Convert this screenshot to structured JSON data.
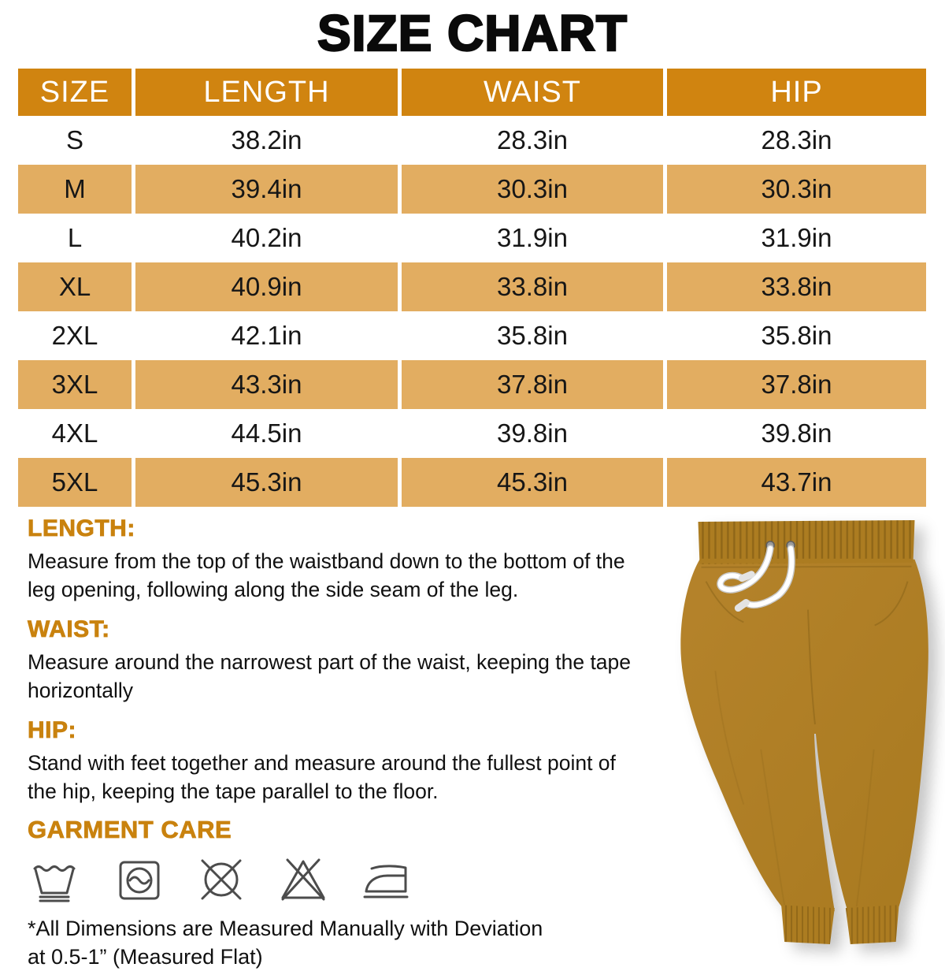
{
  "title": "SIZE CHART",
  "table": {
    "headers": [
      "SIZE",
      "LENGTH",
      "WAIST",
      "HIP"
    ],
    "rows": [
      [
        "S",
        "38.2in",
        "28.3in",
        "28.3in"
      ],
      [
        "M",
        "39.4in",
        "30.3in",
        "30.3in"
      ],
      [
        "L",
        "40.2in",
        "31.9in",
        "31.9in"
      ],
      [
        "XL",
        "40.9in",
        "33.8in",
        "33.8in"
      ],
      [
        "2XL",
        "42.1in",
        "35.8in",
        "35.8in"
      ],
      [
        "3XL",
        "43.3in",
        "37.8in",
        "37.8in"
      ],
      [
        "4XL",
        "44.5in",
        "39.8in",
        "39.8in"
      ],
      [
        "5XL",
        "45.3in",
        "45.3in",
        "43.7in"
      ]
    ]
  },
  "chart_data": {
    "type": "table",
    "title": "SIZE CHART",
    "columns": [
      "SIZE",
      "LENGTH",
      "WAIST",
      "HIP"
    ],
    "rows": [
      [
        "S",
        "38.2in",
        "28.3in",
        "28.3in"
      ],
      [
        "M",
        "39.4in",
        "30.3in",
        "30.3in"
      ],
      [
        "L",
        "40.2in",
        "31.9in",
        "31.9in"
      ],
      [
        "XL",
        "40.9in",
        "33.8in",
        "33.8in"
      ],
      [
        "2XL",
        "42.1in",
        "35.8in",
        "35.8in"
      ],
      [
        "3XL",
        "43.3in",
        "37.8in",
        "37.8in"
      ],
      [
        "4XL",
        "44.5in",
        "39.8in",
        "39.8in"
      ],
      [
        "5XL",
        "45.3in",
        "45.3in",
        "43.7in"
      ]
    ]
  },
  "sections": [
    {
      "heading": "LENGTH:",
      "body": "Measure from the top of the waistband down to the bottom of the\nleg opening, following along the side seam of the leg."
    },
    {
      "heading": "WAIST:",
      "body": "Measure around the narrowest part of the waist, keeping the tape\nhorizontally"
    },
    {
      "heading": "HIP:",
      "body": "Stand with feet together and measure around the fullest point of\nthe hip, keeping the tape parallel to the floor."
    }
  ],
  "garment_care": {
    "heading": "GARMENT CARE",
    "icons": [
      "machine-wash-icon",
      "tumble-dry-icon",
      "do-not-dry-clean-icon",
      "do-not-bleach-icon",
      "iron-icon"
    ]
  },
  "footnote": "*All Dimensions are Measured Manually with Deviation\nat 0.5-1” (Measured Flat)",
  "colors": {
    "header_bg": "#D08410",
    "row_alt_bg": "#E2AD61",
    "accent_text": "#C9820E",
    "pants_fabric": "#B28027",
    "drawstring": "#FFFFFF"
  }
}
